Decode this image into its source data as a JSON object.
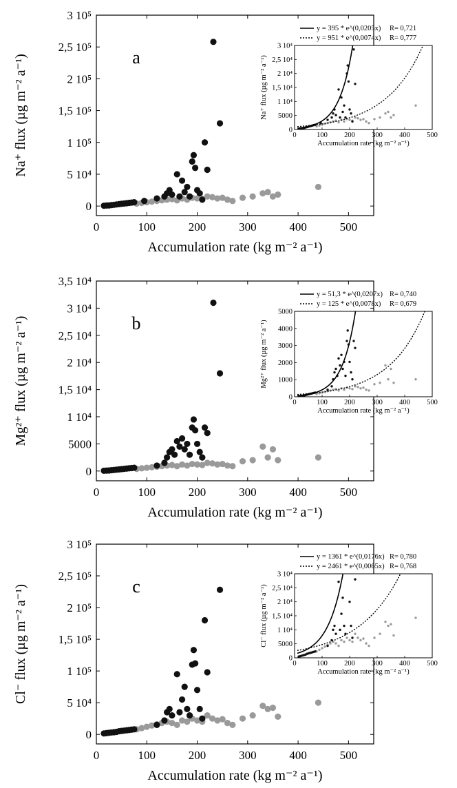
{
  "panels": [
    {
      "letter": "a",
      "xlabel": "Accumulation rate (kg m⁻² a⁻¹)",
      "ylabel": "Na⁺ flux (µg m⁻² a⁻¹)",
      "xticks": [
        "0",
        "100",
        "200",
        "300",
        "400",
        "500"
      ],
      "yticks": [
        "0",
        "5 10⁴",
        "1 10⁵",
        "1,5 10⁵",
        "2 10⁵",
        "2,5 10⁵",
        "3 10⁵"
      ],
      "inset": {
        "xlabel": "Accumulation rate (kg m⁻² a⁻¹)",
        "ylabel": "Na⁺ flux (µg m⁻² a⁻¹)",
        "xticks": [
          "0",
          "100",
          "200",
          "300",
          "400",
          "500"
        ],
        "yticks": [
          "0",
          "5000",
          "1 10⁴",
          "1,5 10⁴",
          "2 10⁴",
          "2,5 10⁴",
          "3 10⁴"
        ],
        "legend": [
          {
            "eq": "y = 395 * e^(0,0205x)",
            "r": "R= 0,721"
          },
          {
            "eq": "y = 951 * e^(0,0074x)",
            "r": "R= 0,777"
          }
        ]
      }
    },
    {
      "letter": "b",
      "xlabel": "Accumulation rate (kg m⁻² a⁻¹)",
      "ylabel": "Mg²⁺ flux (µg m⁻² a⁻¹)",
      "xticks": [
        "0",
        "100",
        "200",
        "300",
        "400",
        "500"
      ],
      "yticks": [
        "0",
        "5000",
        "1 10⁴",
        "1,5 10⁴",
        "2 10⁴",
        "2,5 10⁴",
        "3 10⁴",
        "3,5 10⁴"
      ],
      "inset": {
        "xlabel": "Accumulation rate (kg m⁻² a⁻¹)",
        "ylabel": "Mg²⁺ flux (µg m⁻² a⁻¹)",
        "xticks": [
          "0",
          "100",
          "200",
          "300",
          "400",
          "500"
        ],
        "yticks": [
          "0",
          "1000",
          "2000",
          "3000",
          "4000",
          "5000"
        ],
        "legend": [
          {
            "eq": "y = 51,3 * e^(0,0207x)",
            "r": "R= 0,740"
          },
          {
            "eq": "y = 125 * e^(0,0078x)",
            "r": "R= 0,679"
          }
        ]
      }
    },
    {
      "letter": "c",
      "xlabel": "Accumulation rate (kg m⁻² a⁻¹)",
      "ylabel": "Cl⁻ flux (µg m⁻² a⁻¹)",
      "xticks": [
        "0",
        "100",
        "200",
        "300",
        "400",
        "500"
      ],
      "yticks": [
        "0",
        "5 10⁴",
        "1 10⁵",
        "1,5 10⁵",
        "2 10⁵",
        "2,5 10⁵",
        "3 10⁵"
      ],
      "inset": {
        "xlabel": "Accumulation rate (kg m⁻² a⁻¹)",
        "ylabel": "Cl⁻ flux (µg m⁻² a⁻¹)",
        "xticks": [
          "0",
          "100",
          "200",
          "300",
          "400",
          "500"
        ],
        "yticks": [
          "0",
          "5000",
          "1 10⁴",
          "1,5 10⁴",
          "2 10⁴",
          "2,5 10⁴",
          "3 10⁴"
        ],
        "legend": [
          {
            "eq": "y = 1361 * e^(0,0176x)",
            "r": "R= 0,780"
          },
          {
            "eq": "y = 2461 * e^(0,0065x)",
            "r": "R= 0,768"
          }
        ]
      }
    }
  ],
  "chart_data": [
    {
      "type": "scatter",
      "panel": "a",
      "xlim": [
        0,
        550
      ],
      "ylim": [
        -15000,
        300000
      ],
      "colors": {
        "black_series": "#111111",
        "gray_series": "#9a9a9a"
      },
      "series": [
        {
          "color": "black",
          "points": [
            [
              15,
              500
            ],
            [
              20,
              800
            ],
            [
              25,
              1000
            ],
            [
              30,
              1500
            ],
            [
              35,
              2000
            ],
            [
              40,
              2500
            ],
            [
              45,
              3000
            ],
            [
              50,
              3500
            ],
            [
              55,
              4000
            ],
            [
              60,
              4500
            ],
            [
              65,
              5000
            ],
            [
              70,
              5500
            ],
            [
              75,
              6000
            ],
            [
              95,
              8000
            ],
            [
              120,
              12000
            ],
            [
              135,
              15000
            ],
            [
              140,
              20000
            ],
            [
              145,
              25000
            ],
            [
              150,
              18000
            ],
            [
              160,
              50000
            ],
            [
              165,
              15000
            ],
            [
              170,
              40000
            ],
            [
              175,
              22000
            ],
            [
              180,
              30000
            ],
            [
              185,
              15000
            ],
            [
              190,
              70000
            ],
            [
              193,
              80000
            ],
            [
              196,
              60000
            ],
            [
              200,
              25000
            ],
            [
              205,
              20000
            ],
            [
              210,
              10000
            ],
            [
              215,
              100000
            ],
            [
              220,
              57000
            ],
            [
              232,
              258000
            ],
            [
              245,
              130000
            ]
          ]
        },
        {
          "color": "gray",
          "points": [
            [
              80,
              4000
            ],
            [
              90,
              5000
            ],
            [
              100,
              6000
            ],
            [
              110,
              7000
            ],
            [
              120,
              8000
            ],
            [
              130,
              9000
            ],
            [
              140,
              10000
            ],
            [
              150,
              11000
            ],
            [
              160,
              9000
            ],
            [
              170,
              12000
            ],
            [
              180,
              10000
            ],
            [
              190,
              13000
            ],
            [
              200,
              12000
            ],
            [
              210,
              11000
            ],
            [
              220,
              15000
            ],
            [
              230,
              14000
            ],
            [
              240,
              12000
            ],
            [
              250,
              13000
            ],
            [
              260,
              10000
            ],
            [
              270,
              8000
            ],
            [
              290,
              13000
            ],
            [
              310,
              15000
            ],
            [
              330,
              20000
            ],
            [
              340,
              22000
            ],
            [
              350,
              15000
            ],
            [
              360,
              18000
            ],
            [
              440,
              30000
            ]
          ]
        }
      ],
      "inset": {
        "xlim": [
          0,
          500
        ],
        "ylim": [
          0,
          30000
        ],
        "fits": [
          {
            "a": 395,
            "b": 0.0205,
            "style": "solid"
          },
          {
            "a": 951,
            "b": 0.0074,
            "style": "dashed"
          }
        ]
      }
    },
    {
      "type": "scatter",
      "panel": "b",
      "xlim": [
        0,
        550
      ],
      "ylim": [
        -1800,
        35000
      ],
      "colors": {
        "black_series": "#111111",
        "gray_series": "#9a9a9a"
      },
      "series": [
        {
          "color": "black",
          "points": [
            [
              15,
              50
            ],
            [
              20,
              80
            ],
            [
              25,
              100
            ],
            [
              30,
              150
            ],
            [
              35,
              200
            ],
            [
              40,
              250
            ],
            [
              45,
              300
            ],
            [
              50,
              350
            ],
            [
              55,
              400
            ],
            [
              60,
              450
            ],
            [
              65,
              500
            ],
            [
              70,
              550
            ],
            [
              75,
              600
            ],
            [
              120,
              1000
            ],
            [
              135,
              1500
            ],
            [
              140,
              2500
            ],
            [
              145,
              3500
            ],
            [
              150,
              4000
            ],
            [
              155,
              3000
            ],
            [
              160,
              5500
            ],
            [
              165,
              4500
            ],
            [
              170,
              6000
            ],
            [
              175,
              4000
            ],
            [
              180,
              5000
            ],
            [
              185,
              3000
            ],
            [
              190,
              8000
            ],
            [
              193,
              9500
            ],
            [
              196,
              7500
            ],
            [
              200,
              5000
            ],
            [
              205,
              3500
            ],
            [
              210,
              2500
            ],
            [
              215,
              8000
            ],
            [
              220,
              7000
            ],
            [
              232,
              31000
            ],
            [
              245,
              18000
            ]
          ]
        },
        {
          "color": "gray",
          "points": [
            [
              80,
              400
            ],
            [
              90,
              500
            ],
            [
              100,
              600
            ],
            [
              110,
              700
            ],
            [
              120,
              800
            ],
            [
              130,
              900
            ],
            [
              140,
              1000
            ],
            [
              150,
              1100
            ],
            [
              160,
              900
            ],
            [
              170,
              1200
            ],
            [
              180,
              1000
            ],
            [
              190,
              1300
            ],
            [
              200,
              1200
            ],
            [
              210,
              1100
            ],
            [
              220,
              1500
            ],
            [
              230,
              1400
            ],
            [
              240,
              1200
            ],
            [
              250,
              1300
            ],
            [
              260,
              1000
            ],
            [
              270,
              900
            ],
            [
              290,
              1800
            ],
            [
              310,
              2000
            ],
            [
              330,
              4500
            ],
            [
              340,
              2500
            ],
            [
              350,
              4000
            ],
            [
              360,
              2000
            ],
            [
              440,
              2500
            ]
          ]
        }
      ],
      "inset": {
        "xlim": [
          0,
          500
        ],
        "ylim": [
          0,
          5000
        ],
        "fits": [
          {
            "a": 51.3,
            "b": 0.0207,
            "style": "solid"
          },
          {
            "a": 125,
            "b": 0.0078,
            "style": "dashed"
          }
        ]
      }
    },
    {
      "type": "scatter",
      "panel": "c",
      "xlim": [
        0,
        550
      ],
      "ylim": [
        -15000,
        300000
      ],
      "colors": {
        "black_series": "#111111",
        "gray_series": "#9a9a9a"
      },
      "series": [
        {
          "color": "black",
          "points": [
            [
              15,
              1500
            ],
            [
              20,
              2000
            ],
            [
              25,
              2500
            ],
            [
              30,
              3000
            ],
            [
              35,
              3500
            ],
            [
              40,
              4000
            ],
            [
              45,
              5000
            ],
            [
              50,
              5500
            ],
            [
              55,
              6000
            ],
            [
              60,
              6500
            ],
            [
              65,
              7000
            ],
            [
              70,
              7500
            ],
            [
              75,
              8000
            ],
            [
              120,
              15000
            ],
            [
              135,
              22000
            ],
            [
              140,
              35000
            ],
            [
              145,
              40000
            ],
            [
              150,
              30000
            ],
            [
              160,
              95000
            ],
            [
              165,
              35000
            ],
            [
              170,
              55000
            ],
            [
              175,
              75000
            ],
            [
              180,
              40000
            ],
            [
              185,
              30000
            ],
            [
              190,
              110000
            ],
            [
              193,
              133000
            ],
            [
              196,
              112000
            ],
            [
              200,
              70000
            ],
            [
              205,
              40000
            ],
            [
              210,
              25000
            ],
            [
              215,
              180000
            ],
            [
              220,
              98000
            ],
            [
              245,
              228000
            ]
          ]
        },
        {
          "color": "gray",
          "points": [
            [
              80,
              8000
            ],
            [
              90,
              10000
            ],
            [
              100,
              12000
            ],
            [
              110,
              14000
            ],
            [
              120,
              16000
            ],
            [
              130,
              18000
            ],
            [
              140,
              20000
            ],
            [
              150,
              18000
            ],
            [
              160,
              15000
            ],
            [
              170,
              22000
            ],
            [
              180,
              20000
            ],
            [
              190,
              25000
            ],
            [
              200,
              22000
            ],
            [
              210,
              20000
            ],
            [
              220,
              30000
            ],
            [
              230,
              25000
            ],
            [
              240,
              22000
            ],
            [
              250,
              24000
            ],
            [
              260,
              18000
            ],
            [
              270,
              15000
            ],
            [
              290,
              25000
            ],
            [
              310,
              30000
            ],
            [
              330,
              45000
            ],
            [
              340,
              40000
            ],
            [
              350,
              42000
            ],
            [
              360,
              28000
            ],
            [
              440,
              50000
            ]
          ]
        }
      ],
      "inset": {
        "xlim": [
          0,
          500
        ],
        "ylim": [
          0,
          30000
        ],
        "fits": [
          {
            "a": 1361,
            "b": 0.0176,
            "style": "solid"
          },
          {
            "a": 2461,
            "b": 0.0065,
            "style": "dashed"
          }
        ]
      }
    }
  ]
}
